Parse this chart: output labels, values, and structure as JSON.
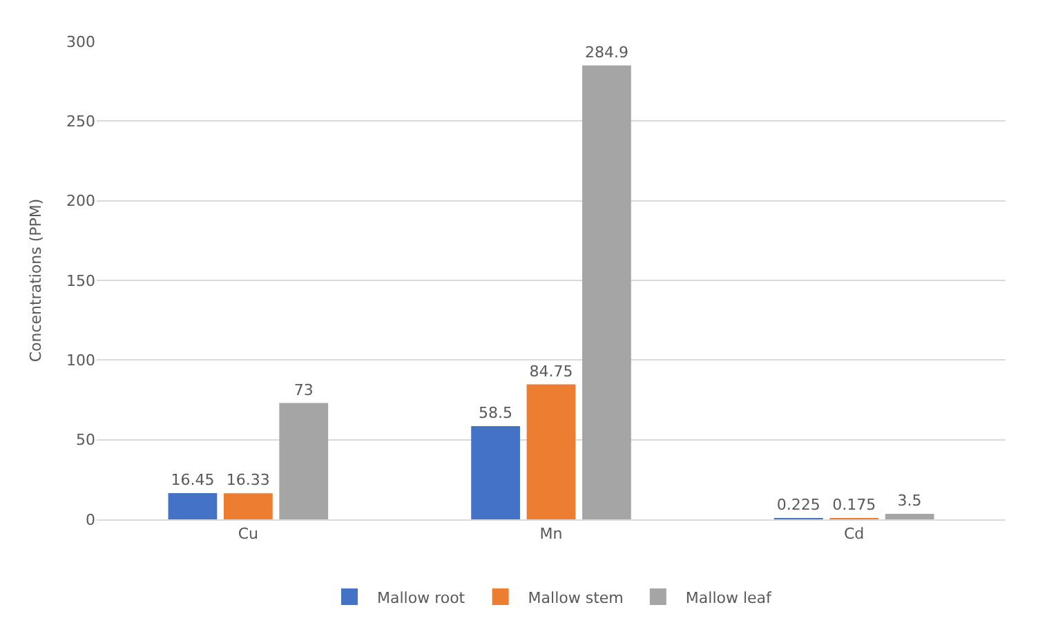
{
  "chart_data": {
    "type": "bar",
    "ylabel": "Concentrations (PPM)",
    "categories": [
      "Cu",
      "Mn",
      "Cd"
    ],
    "series": [
      {
        "name": "Mallow root",
        "color": "#4472c4",
        "values": [
          16.45,
          58.5,
          0.225
        ]
      },
      {
        "name": "Mallow stem",
        "color": "#ed7d31",
        "values": [
          16.33,
          84.75,
          0.175
        ]
      },
      {
        "name": "Mallow leaf",
        "color": "#a5a5a5",
        "values": [
          73,
          284.9,
          3.5
        ]
      }
    ],
    "ylim": [
      0,
      300
    ],
    "yticks": [
      0,
      50,
      100,
      150,
      200,
      250,
      300
    ],
    "grid": "y",
    "legend": "bottom",
    "data_labels": true
  }
}
